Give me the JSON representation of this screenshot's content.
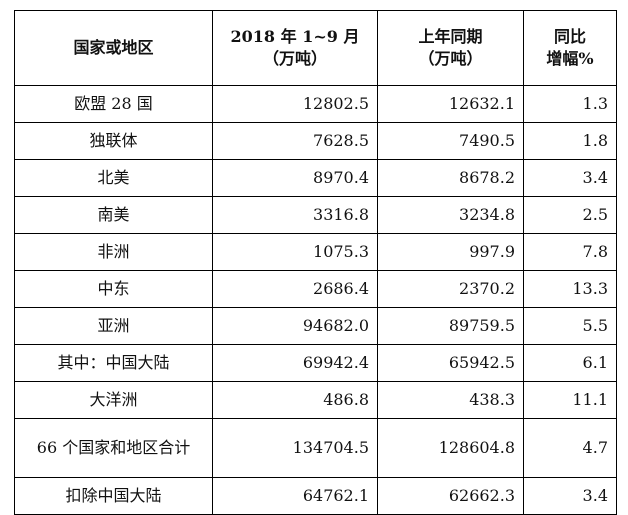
{
  "table": {
    "headers": {
      "region": "国家或地区",
      "current_line1": "2018 年 1~9 月",
      "current_line2": "（万吨）",
      "prior_line1": "上年同期",
      "prior_line2": "（万吨）",
      "growth_line1": "同比",
      "growth_line2": "增幅%"
    },
    "rows": [
      {
        "region": "欧盟 28 国",
        "current": "12802.5",
        "prior": "12632.1",
        "growth": "1.3"
      },
      {
        "region": "独联体",
        "current": "7628.5",
        "prior": "7490.5",
        "growth": "1.8"
      },
      {
        "region": "北美",
        "current": "8970.4",
        "prior": "8678.2",
        "growth": "3.4"
      },
      {
        "region": "南美",
        "current": "3316.8",
        "prior": "3234.8",
        "growth": "2.5"
      },
      {
        "region": "非洲",
        "current": "1075.3",
        "prior": "997.9",
        "growth": "7.8"
      },
      {
        "region": "中东",
        "current": "2686.4",
        "prior": "2370.2",
        "growth": "13.3"
      },
      {
        "region": "亚洲",
        "current": "94682.0",
        "prior": "89759.5",
        "growth": "5.5"
      },
      {
        "region": "其中：中国大陆",
        "current": "69942.4",
        "prior": "65942.5",
        "growth": "6.1"
      },
      {
        "region": "大洋洲",
        "current": "486.8",
        "prior": "438.3",
        "growth": "11.1"
      },
      {
        "region": "66 个国家和地区合计",
        "current": "134704.5",
        "prior": "128604.8",
        "growth": "4.7"
      },
      {
        "region": "扣除中国大陆",
        "current": "64762.1",
        "prior": "62662.3",
        "growth": "3.4"
      }
    ]
  }
}
